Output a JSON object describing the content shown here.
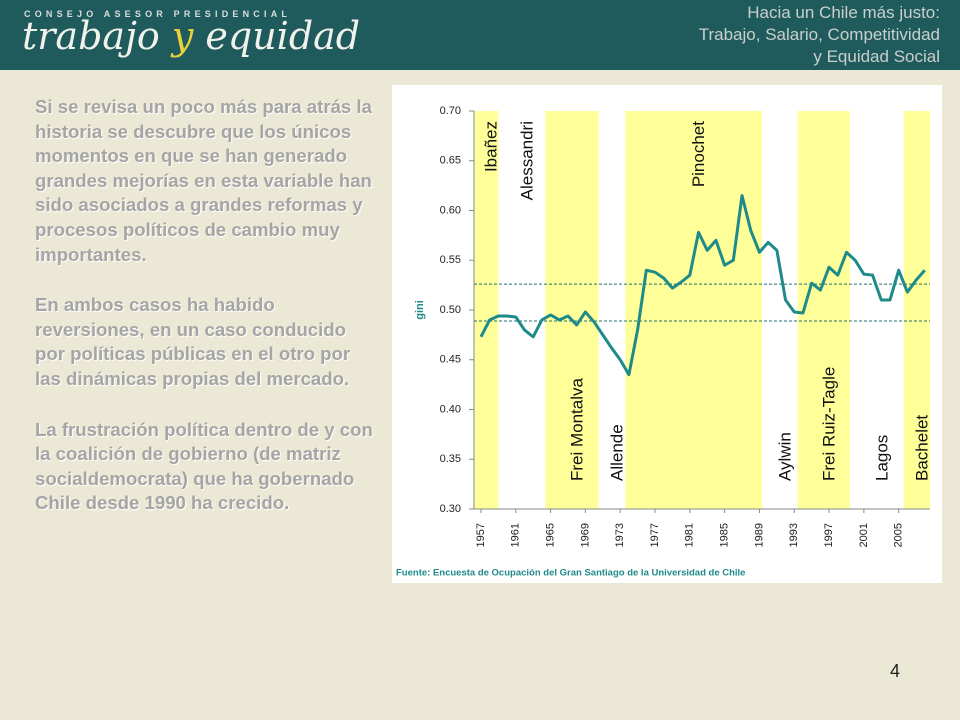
{
  "header": {
    "organization": "CONSEJO ASESOR PRESIDENCIAL",
    "brand": [
      "trabajo",
      "y",
      "equidad"
    ],
    "tagline": [
      "Hacia un Chile más justo:",
      "Trabajo, Salario, Competitividad",
      "y Equidad Social"
    ]
  },
  "body": [
    "Si se revisa un poco más para atrás la historia se descubre que los únicos momentos en que se han generado grandes mejorías en esta variable han sido asociados a grandes reformas y procesos políticos de cambio muy importantes.",
    "En ambos casos ha habido reversiones, en un caso conducido por políticas públicas en el otro por las dinámicas propias del mercado.",
    "La frustración política dentro de y con la coalición de gobierno (de matriz socialdemocrata) que ha gobernado Chile desde 1990 ha crecido."
  ],
  "chart_data": {
    "type": "line",
    "ylabel": "gini",
    "source": "Fuente: Encuesta de Ocupación  del Gran Santiago de la Universidad de Chile",
    "color": "#1f8a8a",
    "band_color": "#ffff99",
    "x": [
      1957,
      1958,
      1959,
      1960,
      1961,
      1962,
      1963,
      1964,
      1965,
      1966,
      1967,
      1968,
      1969,
      1970,
      1971,
      1972,
      1973,
      1974,
      1975,
      1976,
      1977,
      1978,
      1979,
      1980,
      1981,
      1982,
      1983,
      1984,
      1985,
      1986,
      1987,
      1988,
      1989,
      1990,
      1991,
      1992,
      1993,
      1994,
      1995,
      1996,
      1997,
      1998,
      1999,
      2000,
      2001,
      2002,
      2003,
      2004,
      2005,
      2006,
      2007,
      2008
    ],
    "values": [
      0.473,
      0.49,
      0.494,
      0.494,
      0.493,
      0.48,
      0.473,
      0.49,
      0.495,
      0.49,
      0.494,
      0.485,
      0.498,
      0.488,
      0.475,
      0.462,
      0.45,
      0.435,
      0.48,
      0.54,
      0.538,
      0.532,
      0.522,
      0.528,
      0.535,
      0.578,
      0.56,
      0.57,
      0.545,
      0.55,
      0.615,
      0.58,
      0.558,
      0.568,
      0.56,
      0.51,
      0.498,
      0.497,
      0.527,
      0.52,
      0.543,
      0.535,
      0.558,
      0.55,
      0.536,
      0.535,
      0.51,
      0.51,
      0.54,
      0.518,
      0.53,
      0.54
    ],
    "reference_lines": [
      0.526,
      0.489
    ],
    "bands": [
      {
        "name": "Ibañez",
        "start": 1956.2,
        "end": 1959,
        "highlighted": true,
        "label_position": "top"
      },
      {
        "name": "Alessandri",
        "start": 1959,
        "end": 1964.4,
        "highlighted": false,
        "label_position": "top"
      },
      {
        "name": "Frei Montalva",
        "start": 1964.4,
        "end": 1970.5,
        "highlighted": true,
        "label_position": "bottom"
      },
      {
        "name": "Allende",
        "start": 1970.5,
        "end": 1973.6,
        "highlighted": false,
        "label_position": "bottom"
      },
      {
        "name": "Pinochet",
        "start": 1973.6,
        "end": 1989.3,
        "highlighted": true,
        "label_position": "top"
      },
      {
        "name": "Aylwin",
        "start": 1989.3,
        "end": 1993.4,
        "highlighted": false,
        "label_position": "bottom"
      },
      {
        "name": "Frei Ruiz-Tagle",
        "start": 1993.4,
        "end": 1999.4,
        "highlighted": true,
        "label_position": "bottom"
      },
      {
        "name": "Lagos",
        "start": 1999.4,
        "end": 2005.6,
        "highlighted": false,
        "label_position": "bottom"
      },
      {
        "name": "Bachelet",
        "start": 2005.6,
        "end": 2008.6,
        "highlighted": true,
        "label_position": "bottom"
      }
    ],
    "xlim": [
      1956.2,
      2008.6
    ],
    "xticks": [
      1957,
      1961,
      1965,
      1969,
      1973,
      1977,
      1981,
      1985,
      1989,
      1993,
      1997,
      2001,
      2005
    ],
    "ylim": [
      0.3,
      0.7
    ],
    "yticks": [
      {
        "value": 0.3,
        "label": "0.30"
      },
      {
        "value": 0.35,
        "label": "0.35"
      },
      {
        "value": 0.4,
        "label": "0.40"
      },
      {
        "value": 0.45,
        "label": "0.45"
      },
      {
        "value": 0.5,
        "label": "0.50"
      },
      {
        "value": 0.55,
        "label": "0.55"
      },
      {
        "value": 0.6,
        "label": "0.60"
      },
      {
        "value": 0.65,
        "label": "0.65"
      },
      {
        "value": 0.7,
        "label": "0.70"
      }
    ]
  },
  "page_number": "4"
}
